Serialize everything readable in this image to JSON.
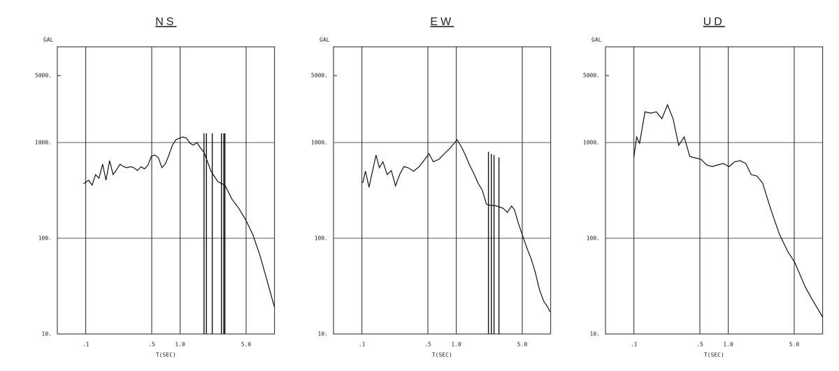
{
  "chart_data": [
    {
      "type": "line",
      "title": "NS",
      "ylabel": "GAL",
      "xlabel": "T(SEC)",
      "log_x": true,
      "log_y": true,
      "grid": true,
      "color": "#111111",
      "xlim": [
        0.05,
        10
      ],
      "ylim": [
        10,
        10000
      ],
      "xticks": [
        {
          "value": 0.1,
          "label": ".1"
        },
        {
          "value": 0.5,
          "label": ".5"
        },
        {
          "value": 1,
          "label": "1.0"
        },
        {
          "value": 5,
          "label": "5.0"
        }
      ],
      "yticks": [
        {
          "value": 10,
          "label": "10."
        },
        {
          "value": 100,
          "label": "100."
        },
        {
          "value": 1000,
          "label": "1000."
        },
        {
          "value": 5000,
          "label": "5000."
        }
      ],
      "x": [
        0.095,
        0.107,
        0.117,
        0.127,
        0.138,
        0.151,
        0.164,
        0.179,
        0.195,
        0.212,
        0.231,
        0.251,
        0.274,
        0.298,
        0.324,
        0.353,
        0.385,
        0.419,
        0.456,
        0.497,
        0.541,
        0.589,
        0.641,
        0.698,
        0.761,
        0.829,
        0.903,
        0.98,
        1.07,
        1.17,
        1.27,
        1.38,
        1.51,
        1.64,
        1.79,
        1.95,
        2.12,
        2.51,
        2.98,
        3.53,
        4.19,
        4.97,
        5.89,
        6.98,
        8.29,
        10
      ],
      "values": [
        371,
        404,
        359,
        462,
        424,
        594,
        404,
        646,
        462,
        520,
        594,
        560,
        546,
        560,
        546,
        510,
        560,
        530,
        580,
        720,
        740,
        690,
        546,
        600,
        740,
        940,
        1069,
        1110,
        1143,
        1110,
        984,
        940,
        1000,
        880,
        790,
        630,
        502,
        390,
        359,
        257,
        205,
        155,
        109,
        67,
        37,
        19
      ],
      "spikes": {
        "x": [
          1.79,
          1.9,
          2.19,
          2.74,
          2.9,
          2.98
        ],
        "values": [
          1250,
          1250,
          1250,
          1250,
          1250,
          1250
        ]
      }
    },
    {
      "type": "line",
      "title": "EW",
      "ylabel": "GAL",
      "xlabel": "T(SEC)",
      "log_x": true,
      "log_y": true,
      "grid": true,
      "color": "#111111",
      "xlim": [
        0.05,
        10
      ],
      "ylim": [
        10,
        10000
      ],
      "xticks": [
        {
          "value": 0.1,
          "label": ".1"
        },
        {
          "value": 0.5,
          "label": ".5"
        },
        {
          "value": 1,
          "label": "1.0"
        },
        {
          "value": 5,
          "label": "5.0"
        }
      ],
      "yticks": [
        {
          "value": 10,
          "label": "10."
        },
        {
          "value": 100,
          "label": "100."
        },
        {
          "value": 1000,
          "label": "1000."
        },
        {
          "value": 5000,
          "label": "5000."
        }
      ],
      "x": [
        0.102,
        0.109,
        0.119,
        0.127,
        0.141,
        0.153,
        0.167,
        0.185,
        0.205,
        0.227,
        0.251,
        0.278,
        0.308,
        0.353,
        0.405,
        0.464,
        0.514,
        0.57,
        0.653,
        0.748,
        0.858,
        0.95,
        1.02,
        1.13,
        1.25,
        1.38,
        1.53,
        1.7,
        1.88,
        2.08,
        2.31,
        2.55,
        2.83,
        3.13,
        3.47,
        3.85,
        4.12,
        4.56,
        5.06,
        5.6,
        6.21,
        6.87,
        7.61,
        8.43,
        9.34,
        9.84
      ],
      "values": [
        377,
        502,
        341,
        462,
        739,
        546,
        630,
        462,
        510,
        353,
        462,
        560,
        546,
        502,
        560,
        668,
        764,
        630,
        668,
        764,
        874,
        984,
        1069,
        904,
        739,
        584,
        477,
        377,
        319,
        228,
        220,
        220,
        213,
        206,
        186,
        217,
        199,
        142,
        105,
        79,
        61,
        44,
        29,
        22,
        19,
        17
      ],
      "spikes": {
        "x": [
          2.19,
          2.35,
          2.51,
          2.83
        ],
        "values": [
          800,
          760,
          740,
          700
        ]
      }
    },
    {
      "type": "line",
      "title": "UD",
      "ylabel": "GAL",
      "xlabel": "T(SEC)",
      "log_x": true,
      "log_y": true,
      "grid": true,
      "color": "#111111",
      "xlim": [
        0.05,
        10
      ],
      "ylim": [
        10,
        10000
      ],
      "xticks": [
        {
          "value": 0.1,
          "label": ".1"
        },
        {
          "value": 0.5,
          "label": ".5"
        },
        {
          "value": 1,
          "label": "1.0"
        },
        {
          "value": 5,
          "label": "5.0"
        }
      ],
      "yticks": [
        {
          "value": 10,
          "label": "10."
        },
        {
          "value": 100,
          "label": "100."
        },
        {
          "value": 1000,
          "label": "1000."
        },
        {
          "value": 5000,
          "label": "5000."
        }
      ],
      "x": [
        0.1,
        0.107,
        0.115,
        0.131,
        0.151,
        0.173,
        0.198,
        0.227,
        0.26,
        0.298,
        0.341,
        0.391,
        0.449,
        0.514,
        0.589,
        0.676,
        0.774,
        0.887,
        1.02,
        1.17,
        1.34,
        1.53,
        1.75,
        2.01,
        2.31,
        2.83,
        3.47,
        4.26,
        5.06,
        6.53,
        7.74,
        10
      ],
      "values": [
        703,
        1143,
        984,
        2094,
        2027,
        2094,
        1771,
        2477,
        1771,
        935,
        1143,
        714,
        691,
        668,
        584,
        560,
        584,
        604,
        560,
        630,
        646,
        604,
        462,
        447,
        377,
        199,
        111,
        73,
        56,
        31,
        23,
        15
      ]
    }
  ]
}
